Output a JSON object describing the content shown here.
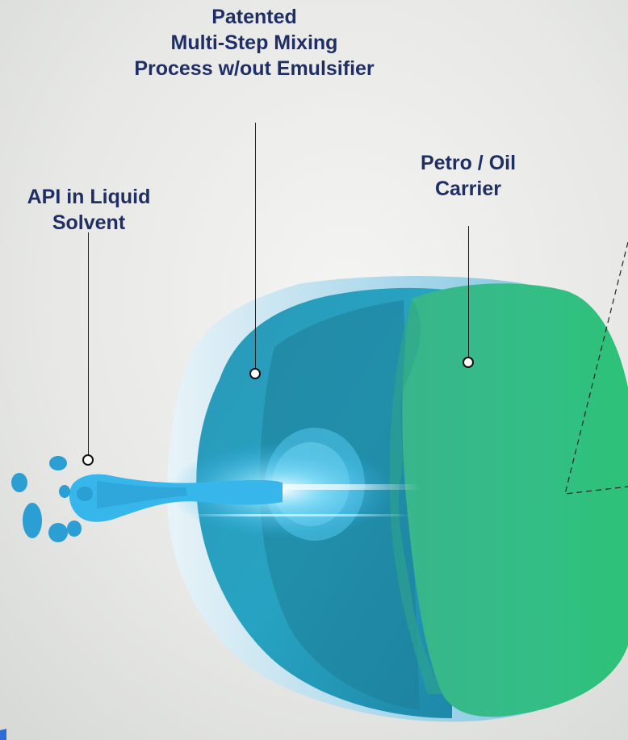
{
  "colors": {
    "background": "#e9eae7",
    "label_text": "#1f2f66",
    "outer_shell": "#cfe6f2",
    "blue_layer": "#2ea8c4",
    "green_core": "#31b97f",
    "stream": "#38b8ee"
  },
  "labels": {
    "mixing": [
      "Patented",
      "Multi-Step Mixing",
      "Process w/out Emulsifier"
    ],
    "carrier": [
      "Petro / Oil",
      "Carrier"
    ],
    "api": [
      "API in Liquid",
      "Solvent"
    ]
  }
}
